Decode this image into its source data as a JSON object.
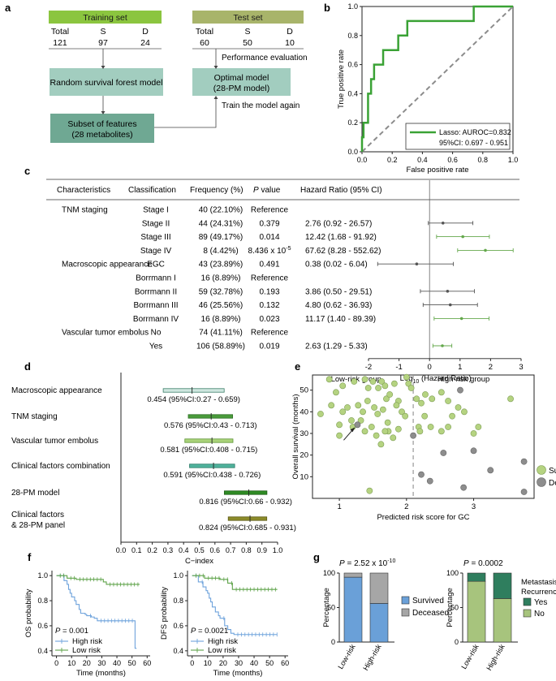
{
  "panel_labels": {
    "a": "a",
    "b": "b",
    "c": "c",
    "d": "d",
    "e": "e",
    "f": "f",
    "g": "g"
  },
  "colors": {
    "green": "#3aa235",
    "light_green": "#8bc53f",
    "green_text": "#64a84c",
    "teal": "#a2cdbf",
    "olive": "#6d8a23",
    "olive_light": "#a7c47d",
    "blue": "#4d8fcb",
    "gray": "#8c8c8c",
    "survived": "#b5d381",
    "deceased": "#8d8d8d",
    "mark_green": "#4aa14a",
    "mark_gray": "#555555",
    "bar_blue": "#6aa0d8",
    "bar_gray": "#a6a6a6",
    "bar_teal": "#2f7e5e",
    "bar_lgreen": "#a7c47d"
  },
  "panel_a": {
    "training": {
      "title": "Training set",
      "headers": [
        "Total",
        "S",
        "D"
      ],
      "values": [
        "121",
        "97",
        "24"
      ]
    },
    "test": {
      "title": "Test set",
      "headers": [
        "Total",
        "S",
        "D"
      ],
      "values": [
        "60",
        "50",
        "10"
      ]
    },
    "performance_evaluation": "Performance evaluation",
    "rsf_box": "Random survival forest model",
    "optimal_box": [
      "Optimal model",
      "(28-PM model)"
    ],
    "subset_box": [
      "Subset of features",
      "(28 metabolites)"
    ],
    "train_again": "Train the model again"
  },
  "panel_b": {
    "chart_data": {
      "type": "line",
      "xlabel": "False positive rate",
      "ylabel": "True positive rate",
      "xlim": [
        0,
        1
      ],
      "ylim": [
        0,
        1
      ],
      "ticks": [
        "0.0",
        "0.2",
        "0.4",
        "0.6",
        "0.8",
        "1.0"
      ],
      "roc": {
        "x": [
          0,
          0,
          0.01,
          0.01,
          0.04,
          0.04,
          0.06,
          0.06,
          0.08,
          0.08,
          0.14,
          0.14,
          0.2,
          0.2,
          0.24,
          0.24,
          0.3,
          0.3,
          0.52,
          0.52,
          0.74,
          0.74,
          1
        ],
        "y": [
          0,
          0.1,
          0.1,
          0.2,
          0.2,
          0.4,
          0.4,
          0.5,
          0.5,
          0.6,
          0.6,
          0.7,
          0.7,
          0.7,
          0.7,
          0.8,
          0.8,
          0.9,
          0.9,
          0.9,
          0.9,
          1,
          1
        ]
      },
      "legend": [
        "Lasso: AUROC=0.832",
        "95%CI: 0.697 - 0.951"
      ]
    }
  },
  "panel_c": {
    "headers": {
      "characteristics": "Characteristics",
      "classification": "Classification",
      "frequency": "Frequency (%)",
      "p": "P",
      "p_suffix": " value",
      "hr": "Hazard Ratio (95% CI)"
    },
    "rows": [
      {
        "char": "TNM staging",
        "cls": "Stage I",
        "freq": "40 (22.10%)",
        "p": "Reference",
        "hr": "",
        "est": null,
        "lo": null,
        "hi": null,
        "c": "gray"
      },
      {
        "char": "",
        "cls": "Stage II",
        "freq": "44 (24.31%)",
        "p": "0.379",
        "hr": "2.76 (0.92 - 26.57)",
        "est": 0.44,
        "lo": -0.04,
        "hi": 1.42,
        "c": "gray"
      },
      {
        "char": "",
        "cls": "Stage III",
        "freq": "89 (49.17%)",
        "p": "0.014",
        "hr": "12.42 (1.68 - 91.92)",
        "est": 1.09,
        "lo": 0.23,
        "hi": 1.96,
        "c": "green"
      },
      {
        "char": "",
        "cls": "Stage IV",
        "freq": "8 (4.42%)",
        "p": "8.436 x 10",
        "p_sup": "-5",
        "hr": "67.62 (8.28 - 552.62)",
        "est": 1.83,
        "lo": 0.92,
        "hi": 2.74,
        "c": "green"
      },
      {
        "char": "Macroscopic appearance",
        "cls": "EGC",
        "freq": "43 (23.89%)",
        "p": "0.491",
        "hr": "0.38 (0.02 - 6.04)",
        "est": -0.42,
        "lo": -1.7,
        "hi": 0.78,
        "c": "gray"
      },
      {
        "char": "",
        "cls": "Borrmann I",
        "freq": "16 (8.89%)",
        "p": "Reference",
        "hr": "",
        "est": null,
        "lo": null,
        "hi": null,
        "c": "gray"
      },
      {
        "char": "",
        "cls": "Borrmann II",
        "freq": "59 (32.78%)",
        "p": "0.193",
        "hr": "3.86 (0.50 - 29.51)",
        "est": 0.59,
        "lo": -0.3,
        "hi": 1.47,
        "c": "gray"
      },
      {
        "char": "",
        "cls": "Borrmann III",
        "freq": "46 (25.56%)",
        "p": "0.132",
        "hr": "4.80 (0.62 - 36.93)",
        "est": 0.68,
        "lo": -0.21,
        "hi": 1.57,
        "c": "gray"
      },
      {
        "char": "",
        "cls": "Borrmann IV",
        "freq": "16 (8.89%)",
        "p": "0.023",
        "hr": "11.17 (1.40 - 89.39)",
        "est": 1.05,
        "lo": 0.15,
        "hi": 1.95,
        "c": "green"
      },
      {
        "char": "Vascular tumor embolus",
        "cls": "No",
        "freq": "74 (41.11%)",
        "p": "Reference",
        "hr": "",
        "est": null,
        "lo": null,
        "hi": null,
        "c": "gray"
      },
      {
        "char": "",
        "cls": "Yes",
        "freq": "106 (58.89%)",
        "p": "0.019",
        "hr": "2.63 (1.29 - 5.33)",
        "est": 0.42,
        "lo": 0.11,
        "hi": 0.73,
        "c": "green"
      }
    ],
    "axis": {
      "ticks": [
        "-2",
        "-1",
        "0",
        "1",
        "2",
        "3"
      ],
      "values": [
        -2,
        -1,
        0,
        1,
        2,
        3
      ],
      "xlabel_pre": "Log",
      "xlabel_sub": "10",
      "xlabel_post": " (Hazard Ratio)"
    }
  },
  "panel_d": {
    "chart_data": {
      "type": "forest",
      "xlabel": "C−index",
      "xlim": [
        0,
        1
      ],
      "ticks": [
        "0.0",
        "0.1",
        "0.2",
        "0.3",
        "0.4",
        "0.5",
        "0.6",
        "0.7",
        "0.8",
        "0.9",
        "1.0"
      ],
      "items": [
        {
          "label": "Macroscopic appearance",
          "text": "0.454 (95%CI:0.27 - 0.659)",
          "est": 0.454,
          "lo": 0.27,
          "hi": 0.659,
          "style": "teal"
        },
        {
          "label": "TNM staging",
          "text": "0.576 (95%CI:0.43 - 0.713)",
          "est": 0.576,
          "lo": 0.43,
          "hi": 0.713,
          "style": "green"
        },
        {
          "label": "Vascular tumor embolus",
          "text": "0.581 (95%CI:0.408 - 0.715)",
          "est": 0.581,
          "lo": 0.408,
          "hi": 0.715,
          "style": "lightgreen"
        },
        {
          "label": "Clinical factors combination",
          "text": "0.591 (95%CI:0.438 - 0.726)",
          "est": 0.591,
          "lo": 0.438,
          "hi": 0.726,
          "style": "teal2"
        },
        {
          "label": "28-PM model",
          "text": "0.816 (95%CI:0.66 - 0.932)",
          "est": 0.816,
          "lo": 0.66,
          "hi": 0.932,
          "style": "darkgreen"
        },
        {
          "label": "Clinical factors",
          "label2": "& 28-PM panel",
          "text": "0.824 (95%CI:0.685 - 0.931)",
          "est": 0.824,
          "lo": 0.685,
          "hi": 0.931,
          "style": "olive"
        }
      ]
    }
  },
  "panel_e": {
    "chart_data": {
      "type": "scatter",
      "xlabel": "Predicted risk score for GC",
      "ylabel": "Overall survival (months)",
      "xlim": [
        0.6,
        3.9
      ],
      "ylim": [
        0,
        57
      ],
      "xticks": [
        1,
        2,
        3
      ],
      "yticks": [
        10,
        20,
        30,
        40,
        50
      ],
      "cutoff": 2.1,
      "group_low": "Low-risk group",
      "group_high": "High-risk group",
      "legend": [
        "Survived",
        "Deceased"
      ],
      "survived": [
        [
          0.85,
          55
        ],
        [
          0.95,
          49
        ],
        [
          1.05,
          52
        ],
        [
          1.22,
          54
        ],
        [
          1.38,
          55
        ],
        [
          1.43,
          51
        ],
        [
          1.5,
          54
        ],
        [
          1.58,
          51
        ],
        [
          1.63,
          54
        ],
        [
          1.68,
          52
        ],
        [
          1.7,
          46
        ],
        [
          1.75,
          48
        ],
        [
          1.82,
          53
        ],
        [
          1.88,
          45
        ],
        [
          2.0,
          56
        ],
        [
          2.03,
          53
        ],
        [
          2.07,
          51
        ],
        [
          2.15,
          46
        ],
        [
          2.22,
          44
        ],
        [
          2.28,
          48
        ],
        [
          2.38,
          46
        ],
        [
          2.52,
          49
        ],
        [
          2.62,
          45
        ],
        [
          2.68,
          38
        ],
        [
          2.77,
          42
        ],
        [
          2.86,
          40
        ],
        [
          0.72,
          39
        ],
        [
          0.88,
          43
        ],
        [
          1.0,
          34
        ],
        [
          1.05,
          40
        ],
        [
          1.12,
          42
        ],
        [
          1.18,
          36
        ],
        [
          1.28,
          43
        ],
        [
          1.35,
          40
        ],
        [
          1.42,
          45
        ],
        [
          1.52,
          42
        ],
        [
          1.57,
          39
        ],
        [
          1.65,
          41
        ],
        [
          1.72,
          35
        ],
        [
          1.85,
          43
        ],
        [
          1.93,
          40
        ],
        [
          1.98,
          38
        ],
        [
          2.18,
          33
        ],
        [
          2.27,
          38
        ],
        [
          2.36,
          33
        ],
        [
          2.52,
          31
        ],
        [
          2.62,
          33
        ],
        [
          3.0,
          30
        ],
        [
          3.07,
          33
        ],
        [
          3.55,
          46
        ],
        [
          1.0,
          29
        ],
        [
          1.2,
          33
        ],
        [
          1.32,
          36
        ],
        [
          1.38,
          31
        ],
        [
          1.48,
          33
        ],
        [
          1.55,
          29
        ],
        [
          1.62,
          25
        ],
        [
          1.73,
          31
        ],
        [
          1.8,
          28
        ],
        [
          1.88,
          32
        ],
        [
          2.2,
          31
        ],
        [
          1.45,
          3.5
        ],
        [
          1.68,
          31
        ]
      ],
      "deceased": [
        [
          1.27,
          34
        ],
        [
          2.1,
          29
        ],
        [
          2.55,
          21
        ],
        [
          2.8,
          50
        ],
        [
          3.0,
          22
        ],
        [
          2.22,
          11
        ],
        [
          2.35,
          8
        ],
        [
          2.85,
          5
        ],
        [
          3.25,
          13
        ],
        [
          3.75,
          17
        ],
        [
          3.75,
          3
        ]
      ],
      "arrow_target": [
        1.27,
        34
      ]
    }
  },
  "panel_f": {
    "os": {
      "chart_data": {
        "type": "line",
        "ylabel": "OS probability",
        "xlabel": "Time (months)",
        "xlim": [
          -3,
          62
        ],
        "ylim": [
          0.36,
          1.04
        ],
        "xticks": [
          "0",
          "10",
          "20",
          "30",
          "40",
          "50",
          "60"
        ],
        "yticks": [
          "0.4",
          "0.6",
          "0.8",
          "1.0"
        ],
        "high": {
          "t": [
            0,
            5,
            7,
            8,
            9,
            10,
            12,
            13,
            15,
            16,
            17,
            19,
            20,
            23,
            25,
            27,
            51,
            52,
            53
          ],
          "s": [
            1,
            0.96,
            0.93,
            0.89,
            0.86,
            0.83,
            0.8,
            0.77,
            0.73,
            0.7,
            0.7,
            0.69,
            0.68,
            0.67,
            0.66,
            0.64,
            0.64,
            0.42,
            0.42
          ]
        },
        "low": {
          "t": [
            0,
            7,
            13,
            31,
            33,
            55
          ],
          "s": [
            1,
            0.98,
            0.97,
            0.95,
            0.93,
            0.93
          ]
        },
        "p_text": " = 0.001",
        "legend": [
          "High risk",
          "Low risk"
        ]
      }
    },
    "dfs": {
      "chart_data": {
        "type": "line",
        "ylabel": "DFS probability",
        "xlabel": "Time (months)",
        "xlim": [
          -3,
          62
        ],
        "ylim": [
          0.36,
          1.04
        ],
        "xticks": [
          "0",
          "10",
          "20",
          "30",
          "40",
          "50",
          "60"
        ],
        "yticks": [
          "0.4",
          "0.6",
          "0.8",
          "1.0"
        ],
        "high": {
          "t": [
            0,
            4,
            7,
            9,
            10,
            11,
            12,
            13,
            15,
            17,
            18,
            21,
            23,
            25,
            27,
            55
          ],
          "s": [
            1,
            0.95,
            0.91,
            0.88,
            0.86,
            0.82,
            0.79,
            0.75,
            0.71,
            0.68,
            0.66,
            0.6,
            0.57,
            0.54,
            0.53,
            0.53
          ]
        },
        "low": {
          "t": [
            0,
            8,
            18,
            23,
            26,
            55
          ],
          "s": [
            1,
            0.98,
            0.97,
            0.94,
            0.89,
            0.89
          ]
        },
        "p_text": " = 0.0021",
        "legend": [
          "High risk",
          "Low risk"
        ]
      }
    }
  },
  "panel_g": {
    "left": {
      "chart_data": {
        "type": "bar",
        "ylabel": "Percentage",
        "categories": [
          "Low-risk",
          "High-risk"
        ],
        "ylim": [
          0,
          100
        ],
        "yticks": [
          "0",
          "50",
          "100"
        ],
        "series": [
          {
            "name": "Survived",
            "values": [
              94,
              56
            ]
          },
          {
            "name": "Deceased",
            "values": [
              6,
              44
            ]
          }
        ],
        "p_text": " = 2.52 x 10",
        "p_sup": "-10"
      }
    },
    "right": {
      "chart_data": {
        "type": "bar",
        "ylabel": "Percentage",
        "categories": [
          "Low-risk",
          "High-risk"
        ],
        "ylim": [
          0,
          100
        ],
        "yticks": [
          "0",
          "50",
          "100"
        ],
        "legend_title": [
          "Metastasis/",
          "Recurrence"
        ],
        "series": [
          {
            "name": "No",
            "values": [
              88,
              63
            ]
          },
          {
            "name": "Yes",
            "values": [
              12,
              37
            ]
          }
        ],
        "p_text": " = 0.0002"
      }
    }
  }
}
